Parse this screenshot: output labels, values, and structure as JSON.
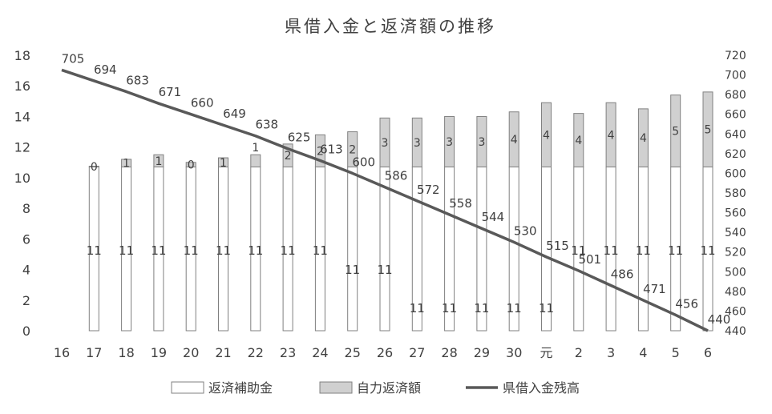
{
  "chart_data": {
    "type": "bar",
    "title": "県借入金と返済額の推移",
    "categories": [
      "16",
      "17",
      "18",
      "19",
      "20",
      "21",
      "22",
      "23",
      "24",
      "25",
      "26",
      "27",
      "28",
      "29",
      "30",
      "元",
      "2",
      "3",
      "4",
      "5",
      "6"
    ],
    "series": [
      {
        "name": "返済補助金",
        "kind": "stacked-bar",
        "axis": "left",
        "values": [
          null,
          10.7,
          10.7,
          10.7,
          10.7,
          10.7,
          10.7,
          10.7,
          10.7,
          10.7,
          10.7,
          10.7,
          10.7,
          10.7,
          10.7,
          10.7,
          10.7,
          10.7,
          10.7,
          10.7,
          10.7
        ],
        "labels": [
          "",
          "11",
          "11",
          "11",
          "11",
          "11",
          "11",
          "11",
          "11",
          "11",
          "11",
          "11",
          "11",
          "11",
          "11",
          "11",
          "11",
          "11",
          "11",
          "11",
          "11"
        ]
      },
      {
        "name": "自力返済額",
        "kind": "stacked-bar",
        "axis": "left",
        "values": [
          null,
          0.05,
          0.5,
          0.8,
          0.3,
          0.6,
          0.8,
          1.5,
          2.1,
          2.3,
          3.2,
          3.2,
          3.3,
          3.3,
          3.6,
          4.2,
          3.5,
          4.2,
          3.8,
          4.7,
          4.9
        ],
        "labels": [
          "",
          "0",
          "1",
          "1",
          "0",
          "1",
          "1",
          "2",
          "2",
          "2",
          "3",
          "3",
          "3",
          "3",
          "4",
          "4",
          "4",
          "4",
          "4",
          "5",
          "5"
        ]
      },
      {
        "name": "県借入金残高",
        "kind": "line",
        "axis": "right",
        "values": [
          705,
          694,
          683,
          671,
          660,
          649,
          638,
          625,
          613,
          600,
          586,
          572,
          558,
          544,
          530,
          515,
          501,
          486,
          471,
          456,
          440
        ],
        "labels": [
          "705",
          "694",
          "683",
          "671",
          "660",
          "649",
          "638",
          "625",
          "613",
          "600",
          "586",
          "572",
          "558",
          "544",
          "530",
          "515",
          "501",
          "486",
          "471",
          "456",
          "440"
        ]
      }
    ],
    "y_left": {
      "min": 0,
      "max": 18,
      "step": 2,
      "ticks": [
        "0",
        "2",
        "4",
        "6",
        "8",
        "10",
        "12",
        "14",
        "16",
        "18"
      ]
    },
    "y_right": {
      "min": 440,
      "max": 720,
      "step": 20,
      "ticks": [
        "440",
        "460",
        "480",
        "500",
        "520",
        "540",
        "560",
        "580",
        "600",
        "620",
        "640",
        "660",
        "680",
        "700",
        "720"
      ]
    },
    "grid": false,
    "legend_position": "bottom",
    "colors": {
      "subsidy": "#ffffff",
      "self": "#d0d0d0",
      "bar_stroke": "#808080",
      "line": "#595959",
      "text": "#404040"
    }
  }
}
